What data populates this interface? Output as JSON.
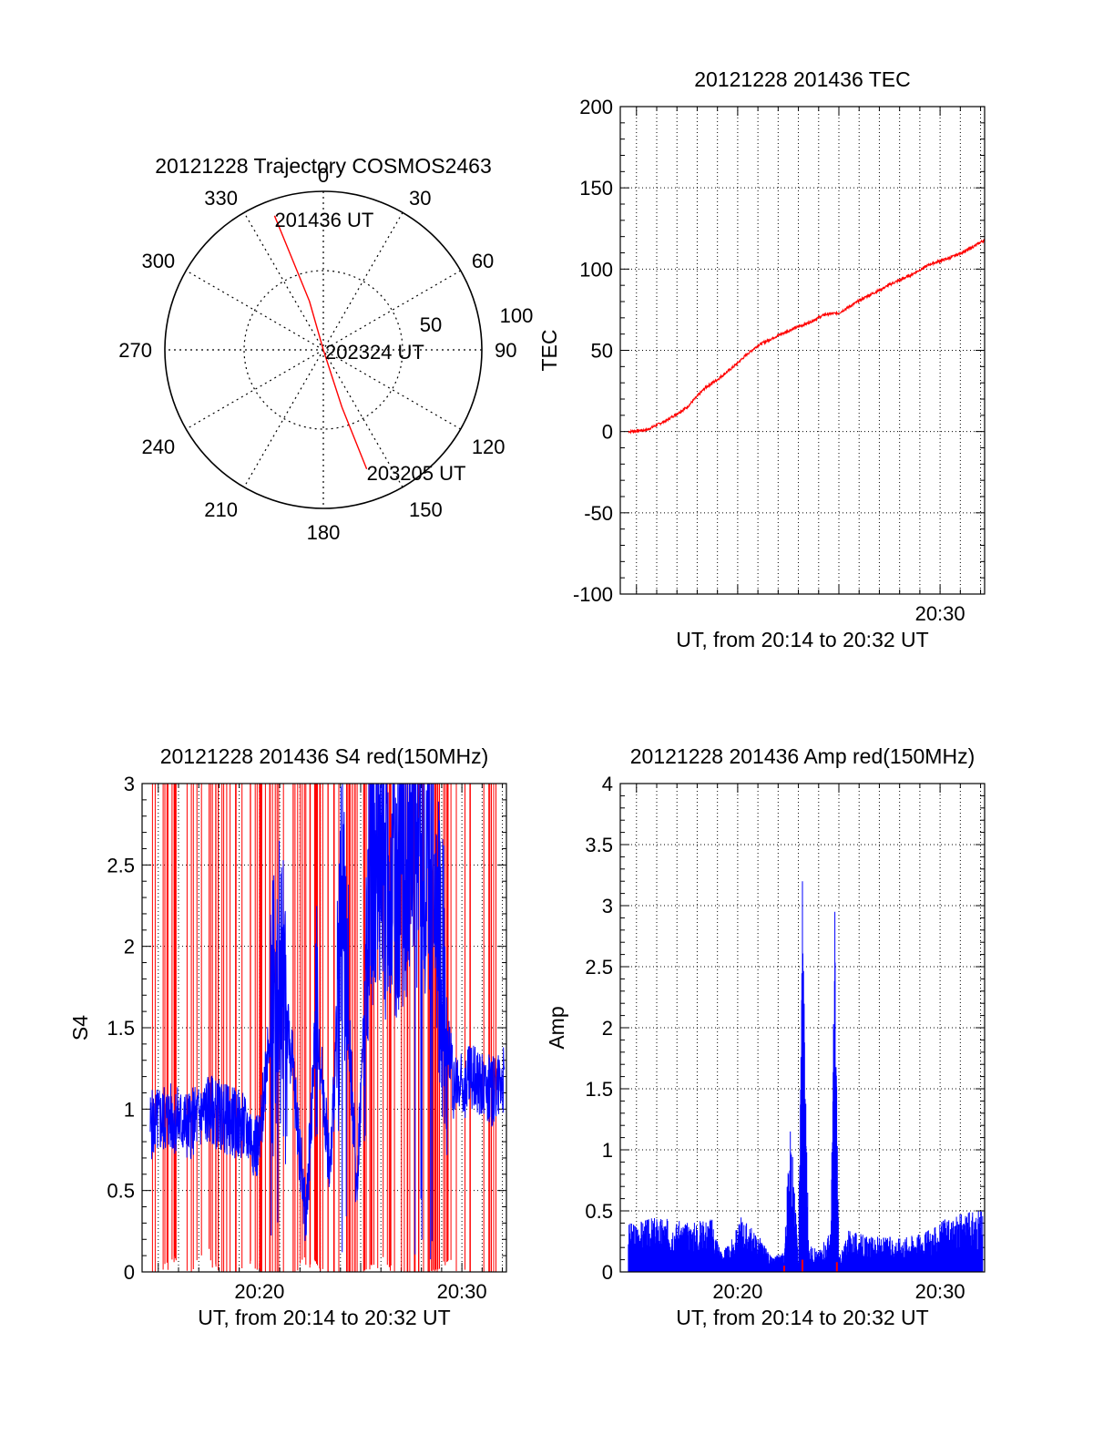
{
  "colors": {
    "axes": "#000000",
    "red_series": "#ff0000",
    "blue_series": "#0000ff",
    "grid": "#000000",
    "background": "#ffffff"
  },
  "chart_data": [
    {
      "id": "trajectory",
      "type": "polar",
      "title": "20121228 Trajectory COSMOS2463",
      "angle_labels": [
        "0",
        "30",
        "60",
        "90",
        "120",
        "150",
        "180",
        "210",
        "240",
        "270",
        "300",
        "330"
      ],
      "radius_labels": [
        "50",
        "100"
      ],
      "rlim": [
        0,
        100
      ],
      "grid": true,
      "series": [
        {
          "color": "#ff0000",
          "points": [
            {
              "azimuth": 340,
              "zenith": 90
            },
            {
              "azimuth": 341,
              "zenith": 62
            },
            {
              "azimuth": 344,
              "zenith": 32
            },
            {
              "azimuth": 0,
              "zenith": 0
            },
            {
              "azimuth": 162,
              "zenith": 38
            },
            {
              "azimuth": 160,
              "zenith": 80
            }
          ]
        }
      ],
      "annotations": [
        {
          "text": "201436 UT",
          "azimuth": 340,
          "zenith": 90
        },
        {
          "text": "202324 UT",
          "azimuth": 0,
          "zenith": 0
        },
        {
          "text": "203205 UT",
          "azimuth": 160,
          "zenith": 80
        }
      ]
    },
    {
      "id": "tec",
      "type": "line",
      "title": "20121228 201436 TEC",
      "xlabel": "UT, from 20:14 to 20:32 UT",
      "ylabel": "TEC",
      "xlim": [
        14.2,
        32.2
      ],
      "ylim": [
        -100,
        200
      ],
      "yticks": [
        -100,
        -50,
        0,
        50,
        100,
        150,
        200
      ],
      "xticks": [
        {
          "value": 30,
          "label": "20:30"
        }
      ],
      "grid": true,
      "series": [
        {
          "color": "#ff0000",
          "x": [
            14.6,
            15.5,
            16.5,
            17.5,
            18.4,
            19.0,
            19.8,
            20.5,
            21.0,
            21.8,
            22.5,
            23.5,
            24.3,
            25.0,
            26.2,
            27.0,
            27.6,
            28.5,
            29.5,
            30.5,
            31.4,
            32.2
          ],
          "y": [
            0,
            1,
            7,
            15,
            27,
            32,
            40,
            48,
            53,
            58,
            62,
            67,
            72,
            73,
            82,
            87,
            91,
            96,
            103,
            107,
            112,
            118
          ]
        }
      ]
    },
    {
      "id": "s4",
      "type": "line",
      "title": "20121228 201436 S4 red(150MHz)",
      "xlabel": "UT, from 20:14 to 20:32 UT",
      "ylabel": "S4",
      "xlim": [
        14.2,
        32.2
      ],
      "ylim": [
        0,
        3
      ],
      "yticks": [
        0,
        0.5,
        1,
        1.5,
        2,
        2.5,
        3
      ],
      "ytick_labels": [
        "0",
        "0.5",
        "1",
        "1.5",
        "2",
        "2.5",
        "3"
      ],
      "xticks": [
        {
          "value": 20,
          "label": "20:20"
        },
        {
          "value": 30,
          "label": "20:30"
        }
      ],
      "grid": true,
      "series": [
        {
          "color": "#0000ff",
          "x": [
            14.6,
            15.5,
            16.5,
            17.5,
            18.2,
            19.0,
            19.5,
            20.0,
            20.4,
            21.0,
            21.6,
            22.3,
            22.8,
            23.5,
            24.1,
            24.8,
            25.5,
            26.5,
            27.5,
            28.5,
            29.6,
            30.5,
            31.5,
            32.1
          ],
          "y": [
            0.9,
            0.95,
            0.9,
            1.0,
            0.95,
            0.9,
            0.85,
            0.75,
            1.4,
            1.8,
            1.3,
            0.3,
            1.6,
            0.6,
            2.3,
            0.5,
            2.5,
            2.4,
            2.6,
            2.5,
            1.1,
            1.2,
            1.1,
            1.2
          ]
        },
        {
          "color": "#ff0000",
          "x": [
            14.8,
            15.8,
            16.6,
            17.4,
            18.0,
            18.9,
            19.6,
            20.1,
            21.0,
            21.7,
            22.4,
            23.2,
            24.0,
            25.0,
            26.1,
            27.3,
            28.4,
            29.2,
            30.4,
            31.2,
            31.8
          ],
          "y": [
            0,
            0.1,
            0,
            0.2,
            0,
            0,
            0.1,
            0,
            0,
            0,
            0.2,
            0,
            0,
            0,
            0.1,
            0,
            0,
            0.1,
            0,
            0,
            0
          ]
        }
      ]
    },
    {
      "id": "amp",
      "type": "line",
      "title": "20121228 201436 Amp red(150MHz)",
      "xlabel": "UT, from 20:14 to 20:32 UT",
      "ylabel": "Amp",
      "xlim": [
        14.2,
        32.2
      ],
      "ylim": [
        0,
        4
      ],
      "yticks": [
        0,
        0.5,
        1,
        1.5,
        2,
        2.5,
        3,
        3.5,
        4
      ],
      "ytick_labels": [
        "0",
        "0.5",
        "1",
        "1.5",
        "2",
        "2.5",
        "3",
        "3.5",
        "4"
      ],
      "xticks": [
        {
          "value": 20,
          "label": "20:20"
        },
        {
          "value": 30,
          "label": "20:30"
        }
      ],
      "grid": true,
      "series": [
        {
          "color": "#0000ff",
          "x": [
            14.6,
            16.0,
            17.5,
            18.7,
            19.2,
            19.6,
            20.2,
            21.1,
            21.7,
            22.3,
            22.6,
            23.0,
            23.2,
            23.5,
            24.0,
            24.6,
            24.8,
            25.0,
            25.5,
            26.5,
            28.0,
            29.5,
            30.5,
            32.1
          ],
          "y": [
            0.35,
            0.4,
            0.35,
            0.4,
            0.15,
            0.2,
            0.4,
            0.25,
            0.1,
            0.15,
            1.15,
            0.1,
            3.2,
            0.2,
            0.15,
            0.3,
            2.95,
            0.1,
            0.3,
            0.25,
            0.25,
            0.3,
            0.4,
            0.45
          ]
        },
        {
          "color": "#ff0000",
          "x": [
            22.3,
            23.2,
            24.9
          ],
          "y": [
            0.05,
            0.1,
            0.08
          ]
        }
      ]
    }
  ]
}
